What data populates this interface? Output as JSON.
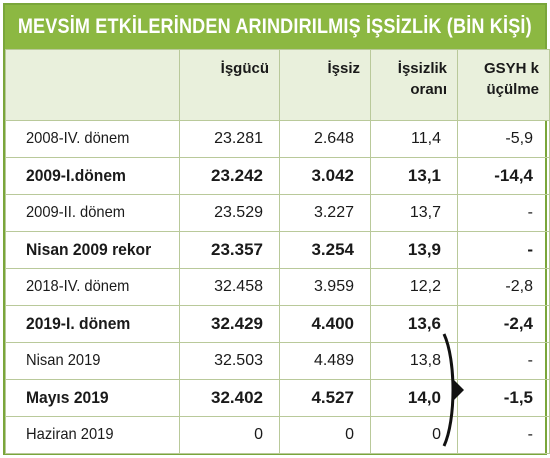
{
  "title": "MEVSİM ETKİLERİNDEN ARINDIRILMIŞ İŞSİZLİK (BİN KİŞİ)",
  "columns": [
    "",
    "İşgücü",
    "İşsiz",
    "İşsizlik oranı",
    "GSYH k üçülme"
  ],
  "rows": [
    {
      "label": "2008-IV. dönem",
      "isgucu": "23.281",
      "issiz": "2.648",
      "oran": "11,4",
      "gsyh": "-5,9",
      "bold": false
    },
    {
      "label": "2009-I.dönem",
      "isgucu": "23.242",
      "issiz": "3.042",
      "oran": "13,1",
      "gsyh": "-14,4",
      "bold": true
    },
    {
      "label": "2009-II. dönem",
      "isgucu": "23.529",
      "issiz": "3.227",
      "oran": "13,7",
      "gsyh": "-",
      "bold": false
    },
    {
      "label": "Nisan 2009 rekor",
      "isgucu": "23.357",
      "issiz": "3.254",
      "oran": "13,9",
      "gsyh": "-",
      "bold": true
    },
    {
      "label": "2018-IV. dönem",
      "isgucu": "32.458",
      "issiz": "3.959",
      "oran": "12,2",
      "gsyh": "-2,8",
      "bold": false
    },
    {
      "label": "2019-I. dönem",
      "isgucu": "32.429",
      "issiz": "4.400",
      "oran": "13,6",
      "gsyh": "-2,4",
      "bold": true
    },
    {
      "label": "Nisan 2019",
      "isgucu": "32.503",
      "issiz": "4.489",
      "oran": "13,8",
      "gsyh": "-",
      "bold": false
    },
    {
      "label": "Mayıs 2019",
      "isgucu": "32.402",
      "issiz": "4.527",
      "oran": "14,0",
      "gsyh": "-1,5",
      "bold": true
    },
    {
      "label": "Haziran 2019",
      "isgucu": "0",
      "issiz": "0",
      "oran": "0",
      "gsyh": "-",
      "bold": false
    }
  ],
  "colors": {
    "header_green": "#8cb842",
    "header_row_bg": "#e9f0dc",
    "grid": "#b9c99a"
  }
}
